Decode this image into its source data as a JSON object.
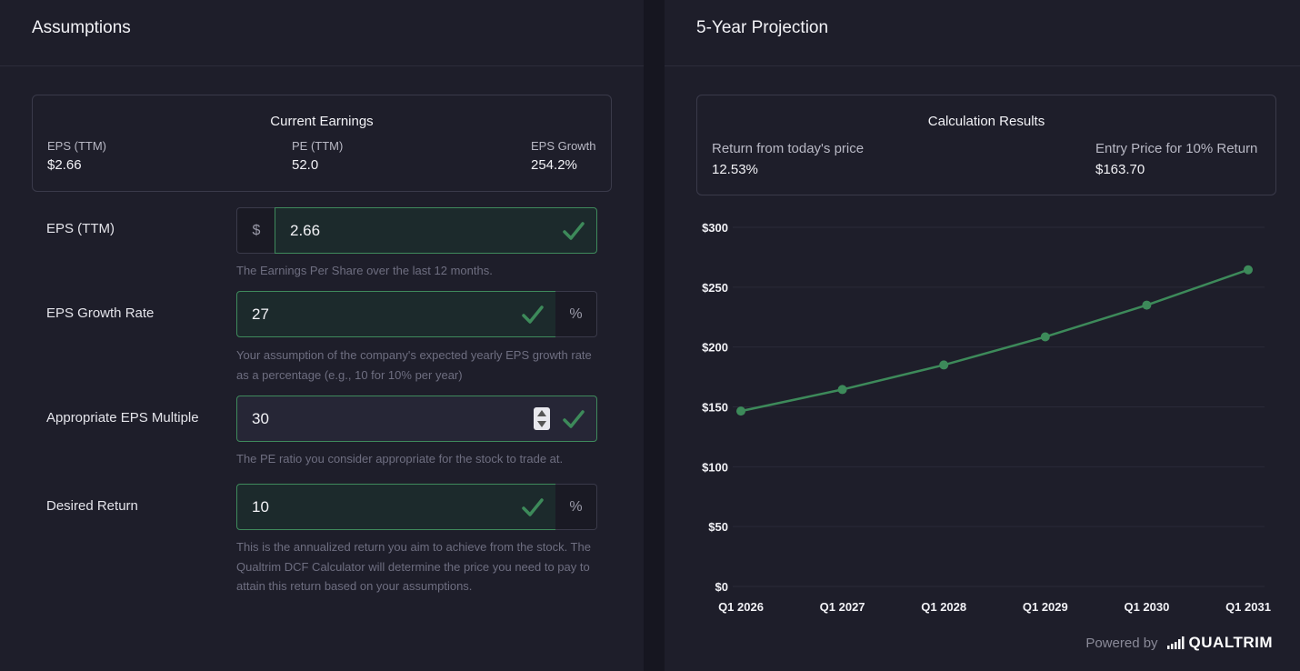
{
  "assumptions": {
    "title": "Assumptions",
    "current_earnings": {
      "title": "Current Earnings",
      "eps_ttm_label": "EPS (TTM)",
      "eps_ttm_value": "$2.66",
      "pe_ttm_label": "PE (TTM)",
      "pe_ttm_value": "52.0",
      "eps_growth_label": "EPS Growth",
      "eps_growth_value": "254.2%"
    },
    "fields": {
      "eps": {
        "label": "EPS (TTM)",
        "prefix": "$",
        "value": "2.66",
        "help": "The Earnings Per Share over the last 12 months."
      },
      "growth": {
        "label": "EPS Growth Rate",
        "value": "27",
        "suffix": "%",
        "help": "Your assumption of the company's expected yearly EPS growth rate as a percentage (e.g., 10 for 10% per year)"
      },
      "multiple": {
        "label": "Appropriate EPS Multiple",
        "value": "30",
        "help": "The PE ratio you consider appropriate for the stock to trade at."
      },
      "return": {
        "label": "Desired Return",
        "value": "10",
        "suffix": "%",
        "help": "This is the annualized return you aim to achieve from the stock. The Qualtrim DCF Calculator will determine the price you need to pay to attain this return based on your assumptions."
      }
    }
  },
  "projection": {
    "title": "5-Year Projection",
    "results": {
      "title": "Calculation Results",
      "return_label": "Return from today's price",
      "return_value": "12.53%",
      "entry_label": "Entry Price for 10% Return",
      "entry_value": "$163.70"
    }
  },
  "chart_data": {
    "type": "line",
    "categories": [
      "Q1 2026",
      "Q1 2027",
      "Q1 2028",
      "Q1 2029",
      "Q1 2030",
      "Q1 2031"
    ],
    "series": [
      {
        "values": [
          146.5,
          164.5,
          185,
          208.5,
          235,
          264.5
        ],
        "color": "#3d8a5a"
      }
    ],
    "ylim": [
      0,
      300
    ],
    "yticks": [
      0,
      50,
      100,
      150,
      200,
      250,
      300
    ],
    "ytick_labels": [
      "$0",
      "$50",
      "$100",
      "$150",
      "$200",
      "$250",
      "$300"
    ],
    "grid": true
  },
  "footer": {
    "powered_by": "Powered by",
    "brand": "QUALTRIM"
  },
  "colors": {
    "accent": "#3d8a5a",
    "background": "#1e1e2a"
  }
}
